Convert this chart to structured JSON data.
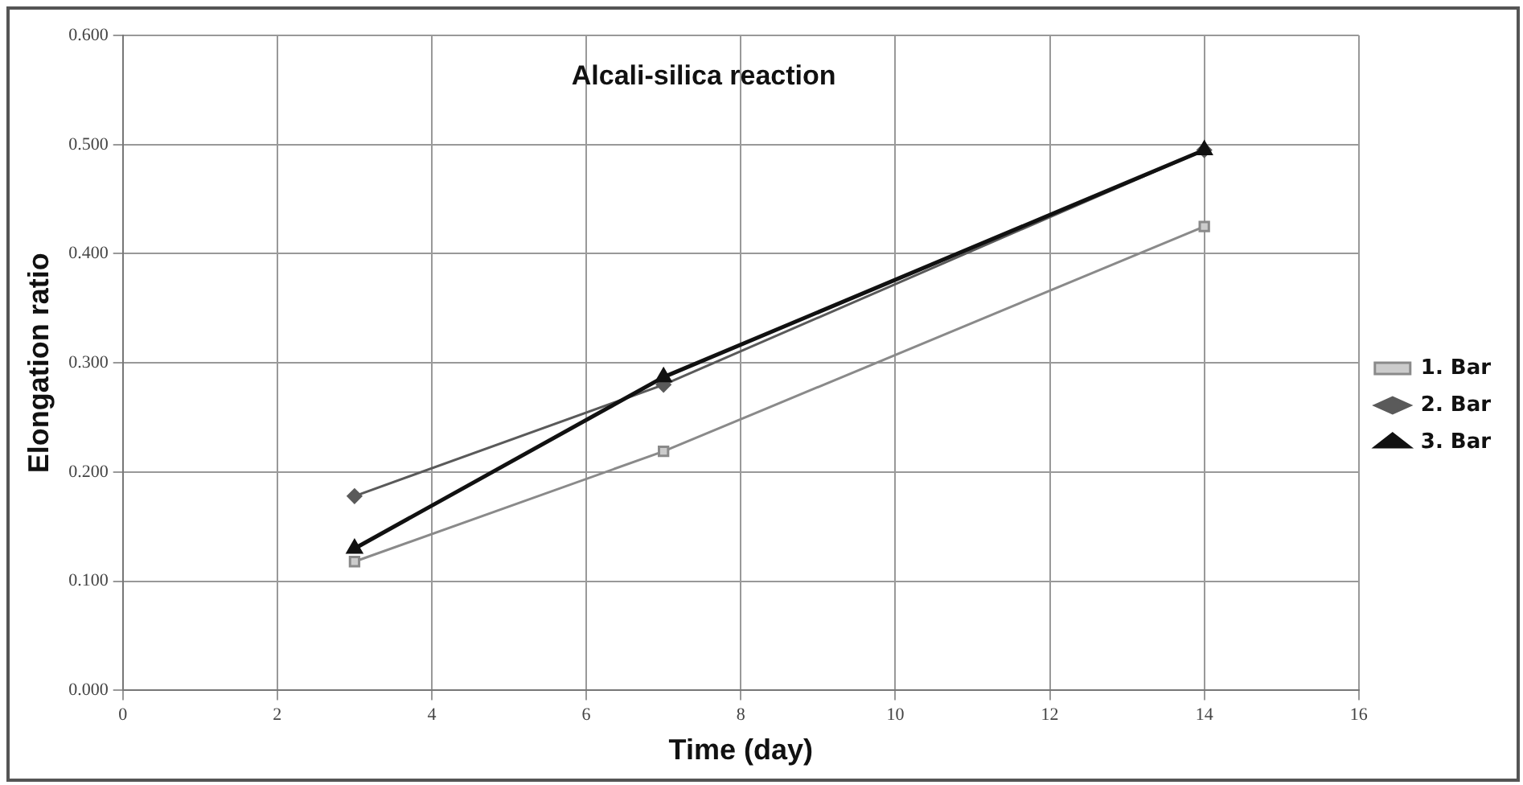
{
  "chart_data": {
    "type": "line",
    "title": "Alcali-silica reaction",
    "xlabel": "Time (day)",
    "ylabel": "Elongation ratio",
    "x": [
      3,
      7,
      14
    ],
    "series": [
      {
        "name": "1. Bar",
        "color": "#8a8a8a",
        "marker": "square",
        "values": [
          0.118,
          0.219,
          0.425
        ]
      },
      {
        "name": "2. Bar",
        "color": "#5a5a5a",
        "marker": "diamond",
        "values": [
          0.178,
          0.28,
          0.495
        ]
      },
      {
        "name": "3. Bar",
        "color": "#111111",
        "marker": "triangle",
        "values": [
          0.13,
          0.287,
          0.495
        ]
      }
    ],
    "xlim": [
      0,
      16
    ],
    "xticks": [
      0,
      2,
      4,
      6,
      8,
      10,
      12,
      14,
      16
    ],
    "ylim": [
      0,
      0.6
    ],
    "yticks": [
      {
        "value": 0,
        "label": "0.000"
      },
      {
        "value": 0.1,
        "label": "0.100"
      },
      {
        "value": 0.2,
        "label": "0.200"
      },
      {
        "value": 0.3,
        "label": "0.300"
      },
      {
        "value": 0.4,
        "label": "0.400"
      },
      {
        "value": 0.5,
        "label": "0.500"
      },
      {
        "value": 0.6,
        "label": "0.600"
      }
    ],
    "grid": true,
    "legend": "right",
    "line_style": "solid"
  }
}
